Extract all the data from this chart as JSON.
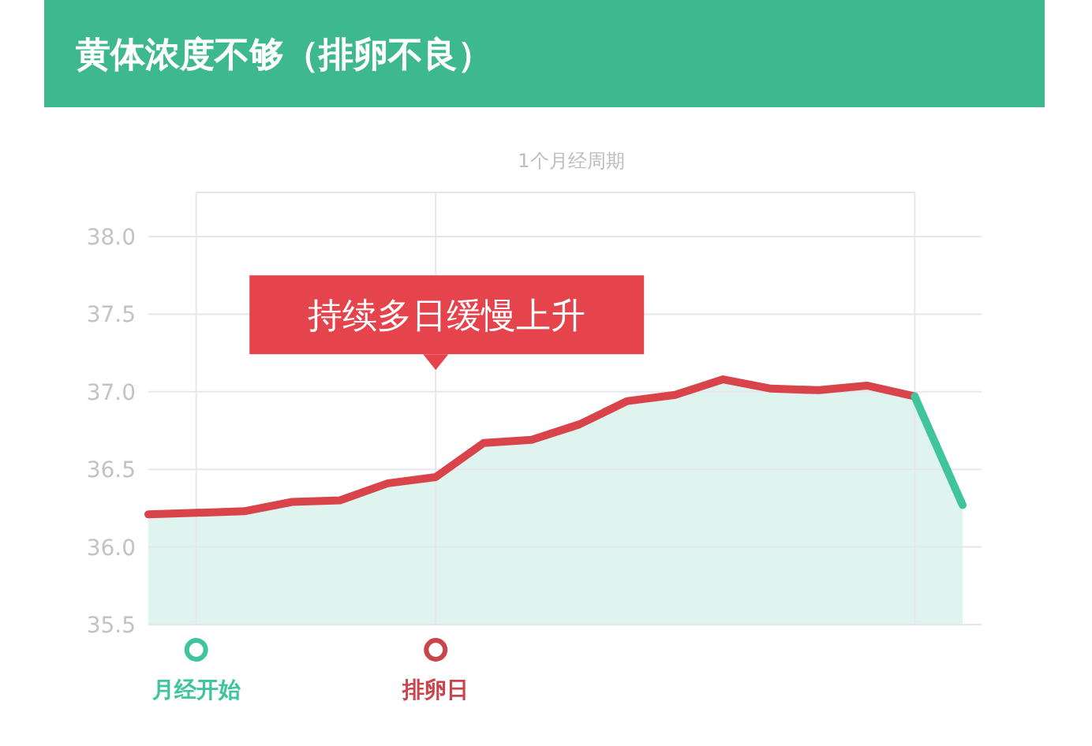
{
  "chart_data": {
    "type": "area",
    "title": "黄体浓度不够（排卵不良）",
    "subtitle": "1个月经周期",
    "categories": [
      null,
      "月经开始",
      null,
      null,
      null,
      null,
      "排卵日",
      null,
      null,
      null,
      null,
      null,
      null,
      null,
      null,
      null,
      null,
      null
    ],
    "series": [
      {
        "color": "#d9434a",
        "values": [
          36.21,
          36.22,
          36.23,
          36.29,
          36.3,
          36.41,
          36.45,
          36.67,
          36.69,
          36.79,
          36.94,
          36.98,
          37.08,
          37.02,
          37.01,
          37.04,
          36.97,
          null
        ]
      },
      {
        "color": "#3fc49e",
        "values": [
          null,
          null,
          null,
          null,
          null,
          null,
          null,
          null,
          null,
          null,
          null,
          null,
          null,
          null,
          null,
          null,
          36.97,
          36.27
        ]
      }
    ],
    "annotations": [
      "持续多日缓慢上升"
    ],
    "ylim": [
      35.5,
      38.0
    ],
    "yticks": [
      35.5,
      {
        "value": 36,
        "label": "36.0"
      },
      36.5,
      {
        "value": 37,
        "label": "37.0"
      },
      37.5,
      {
        "value": 38,
        "label": "38.0"
      }
    ],
    "grid": true
  }
}
